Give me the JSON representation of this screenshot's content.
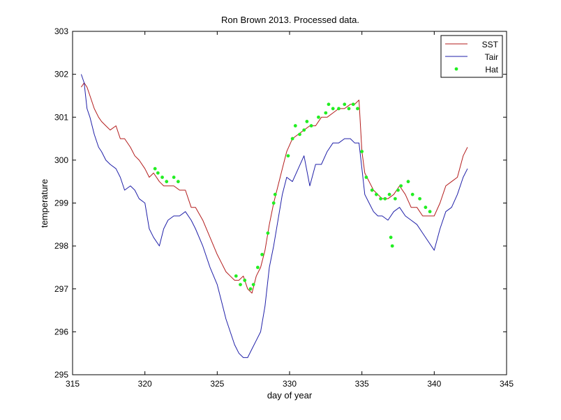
{
  "chart_data": {
    "type": "line",
    "title": "Ron Brown 2013. Processed data.",
    "xlabel": "day of year",
    "ylabel": "temperature",
    "xlim": [
      315,
      345
    ],
    "ylim": [
      295,
      303
    ],
    "xticks": [
      315,
      320,
      325,
      330,
      335,
      340,
      345
    ],
    "yticks": [
      295,
      296,
      297,
      298,
      299,
      300,
      301,
      302,
      303
    ],
    "grid": false,
    "legend_position": "top-right",
    "series": [
      {
        "name": "SST",
        "style": "line",
        "color": "#b31b1b",
        "x": [
          315.6,
          315.8,
          316.0,
          316.2,
          316.5,
          316.8,
          317.0,
          317.3,
          317.6,
          318.0,
          318.3,
          318.6,
          319.0,
          319.3,
          319.6,
          320.0,
          320.3,
          320.6,
          321.0,
          321.3,
          321.6,
          322.0,
          322.4,
          322.8,
          323.2,
          323.5,
          324.0,
          324.5,
          325.0,
          325.3,
          325.6,
          325.9,
          326.2,
          326.5,
          326.8,
          327.1,
          327.4,
          327.7,
          328.0,
          328.3,
          328.6,
          328.9,
          329.2,
          329.5,
          329.8,
          330.2,
          330.6,
          331.0,
          331.4,
          331.8,
          332.2,
          332.6,
          333.0,
          333.4,
          333.8,
          334.2,
          334.5,
          334.8,
          335.0,
          335.2,
          335.5,
          335.8,
          336.1,
          336.4,
          336.8,
          337.2,
          337.6,
          338.0,
          338.4,
          338.8,
          339.2,
          339.6,
          340.0,
          340.4,
          340.8,
          341.2,
          341.6,
          342.0,
          342.3
        ],
        "y": [
          301.7,
          301.8,
          301.7,
          301.5,
          301.2,
          301.0,
          300.9,
          300.8,
          300.7,
          300.8,
          300.5,
          300.5,
          300.3,
          300.1,
          300.0,
          299.8,
          299.6,
          299.7,
          299.5,
          299.4,
          299.4,
          299.4,
          299.3,
          299.3,
          298.9,
          298.9,
          298.6,
          298.2,
          297.8,
          297.6,
          297.4,
          297.3,
          297.2,
          297.2,
          297.3,
          297.0,
          296.9,
          297.3,
          297.5,
          297.9,
          298.5,
          299.0,
          299.4,
          299.8,
          300.2,
          300.5,
          300.6,
          300.7,
          300.8,
          300.8,
          301.0,
          301.0,
          301.1,
          301.2,
          301.2,
          301.3,
          301.3,
          301.4,
          300.2,
          299.7,
          299.5,
          299.3,
          299.2,
          299.1,
          299.1,
          299.2,
          299.4,
          299.2,
          298.9,
          298.9,
          298.7,
          298.7,
          298.7,
          299.0,
          299.4,
          299.5,
          299.6,
          300.1,
          300.3
        ]
      },
      {
        "name": "Tair",
        "style": "line",
        "color": "#1f1fa8",
        "x": [
          315.6,
          315.8,
          316.0,
          316.2,
          316.5,
          316.8,
          317.0,
          317.3,
          317.6,
          318.0,
          318.3,
          318.6,
          319.0,
          319.3,
          319.6,
          320.0,
          320.3,
          320.6,
          321.0,
          321.3,
          321.6,
          322.0,
          322.4,
          322.8,
          323.2,
          323.5,
          324.0,
          324.5,
          325.0,
          325.3,
          325.6,
          325.9,
          326.2,
          326.5,
          326.8,
          327.1,
          327.4,
          327.7,
          328.0,
          328.3,
          328.6,
          328.9,
          329.2,
          329.5,
          329.8,
          330.2,
          330.6,
          331.0,
          331.4,
          331.8,
          332.2,
          332.6,
          333.0,
          333.4,
          333.8,
          334.2,
          334.5,
          334.8,
          335.0,
          335.2,
          335.5,
          335.8,
          336.1,
          336.4,
          336.8,
          337.2,
          337.6,
          338.0,
          338.4,
          338.8,
          339.2,
          339.6,
          340.0,
          340.4,
          340.8,
          341.2,
          341.6,
          342.0,
          342.3
        ],
        "y": [
          302.0,
          301.8,
          301.2,
          301.0,
          300.6,
          300.3,
          300.2,
          300.0,
          299.9,
          299.8,
          299.6,
          299.3,
          299.4,
          299.3,
          299.1,
          299.0,
          298.4,
          298.2,
          298.0,
          298.4,
          298.6,
          298.7,
          298.7,
          298.8,
          298.6,
          298.4,
          298.0,
          297.5,
          297.1,
          296.7,
          296.3,
          296.0,
          295.7,
          295.5,
          295.4,
          295.4,
          295.6,
          295.8,
          296.0,
          296.6,
          297.5,
          298.0,
          298.6,
          299.2,
          299.6,
          299.5,
          299.8,
          300.1,
          299.4,
          299.9,
          299.9,
          300.2,
          300.4,
          300.4,
          300.5,
          300.5,
          300.4,
          300.4,
          299.8,
          299.2,
          299.0,
          298.8,
          298.7,
          298.7,
          298.6,
          298.8,
          298.9,
          298.7,
          298.6,
          298.5,
          298.3,
          298.1,
          297.9,
          298.4,
          298.8,
          298.9,
          299.2,
          299.6,
          299.8
        ]
      },
      {
        "name": "Hat",
        "style": "points",
        "color": "#22ee22",
        "x": [
          320.7,
          320.9,
          321.2,
          321.5,
          322.0,
          322.3,
          326.3,
          326.6,
          326.9,
          327.3,
          327.5,
          327.8,
          328.1,
          328.5,
          328.9,
          329.0,
          329.9,
          330.2,
          330.4,
          330.7,
          331.0,
          331.2,
          331.5,
          332.0,
          332.5,
          332.7,
          333.0,
          333.4,
          333.8,
          334.1,
          334.4,
          334.7,
          335.0,
          335.3,
          335.7,
          336.0,
          336.3,
          336.6,
          336.9,
          337.0,
          337.1,
          337.3,
          337.5,
          337.7,
          338.2,
          338.5,
          339.0,
          339.4,
          339.7
        ],
        "y": [
          299.8,
          299.7,
          299.6,
          299.5,
          299.6,
          299.5,
          297.3,
          297.1,
          297.2,
          297.0,
          297.1,
          297.5,
          297.8,
          298.3,
          299.0,
          299.2,
          300.1,
          300.5,
          300.8,
          300.6,
          300.7,
          300.9,
          300.8,
          301.0,
          301.1,
          301.3,
          301.2,
          301.2,
          301.3,
          301.2,
          301.3,
          301.2,
          300.2,
          299.6,
          299.3,
          299.2,
          299.1,
          299.1,
          299.2,
          298.2,
          298.0,
          299.1,
          299.3,
          299.4,
          299.5,
          299.2,
          299.1,
          298.9,
          298.8
        ]
      }
    ]
  }
}
